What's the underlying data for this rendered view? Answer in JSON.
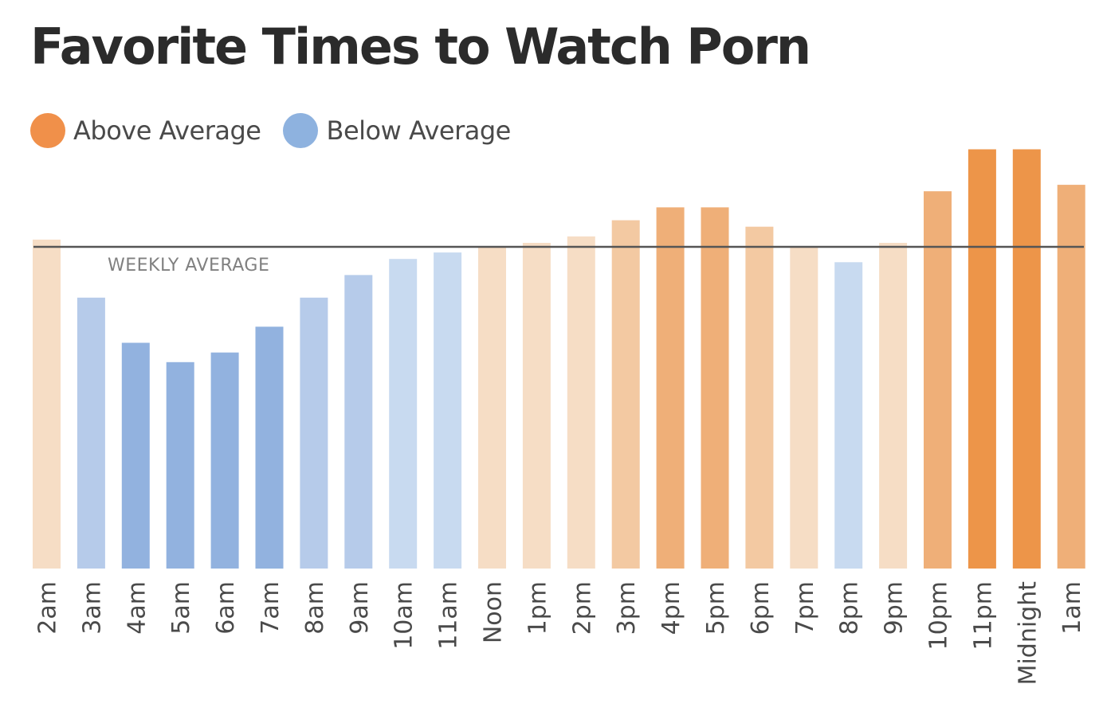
{
  "chart_data": {
    "type": "bar",
    "title": "Favorite Times to Watch Porn",
    "legend": {
      "placement": "top-left",
      "entries": [
        {
          "label": "Above Average",
          "color": "#f0904a"
        },
        {
          "label": "Below Average",
          "color": "#8eb2df"
        }
      ]
    },
    "reference_line": {
      "label": "WEEKLY AVERAGE",
      "value": 100
    },
    "categories": [
      "2am",
      "3am",
      "4am",
      "5am",
      "6am",
      "7am",
      "8am",
      "9am",
      "10am",
      "11am",
      "Noon",
      "1pm",
      "2pm",
      "3pm",
      "4pm",
      "5pm",
      "6pm",
      "7pm",
      "8pm",
      "9pm",
      "10pm",
      "11pm",
      "Midnight",
      "1am"
    ],
    "values": [
      102,
      84,
      70,
      64,
      67,
      75,
      84,
      91,
      96,
      98,
      100,
      101,
      103,
      108,
      112,
      112,
      106,
      100,
      95,
      101,
      117,
      130,
      130,
      119
    ],
    "ylim": [
      0,
      130
    ],
    "grid": false,
    "xlabel": "",
    "ylabel": ""
  }
}
